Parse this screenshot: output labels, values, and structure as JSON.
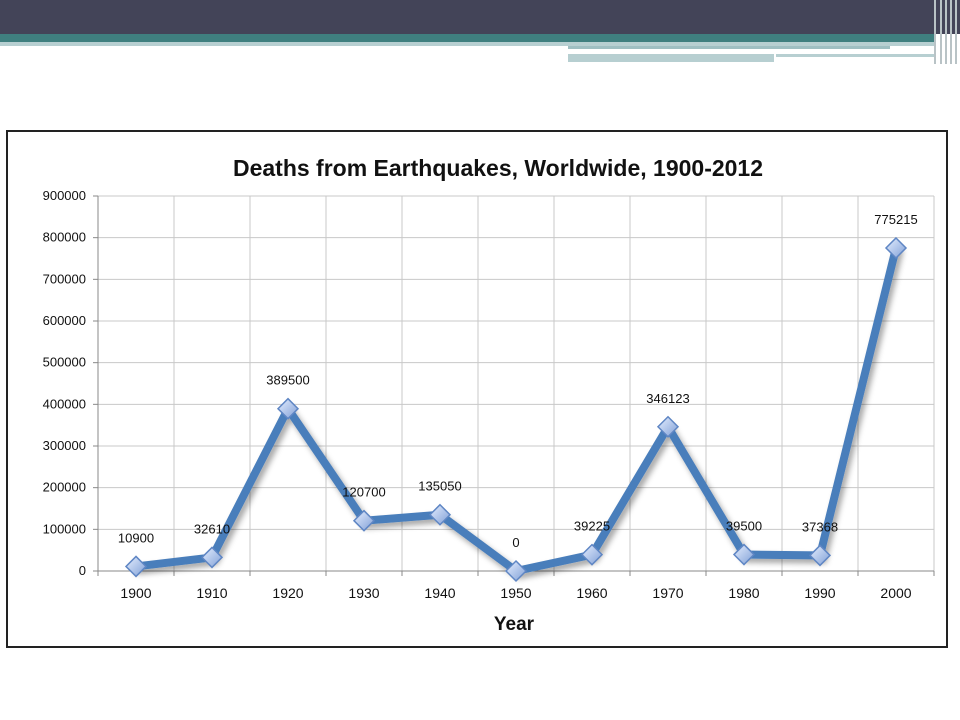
{
  "chart_data": {
    "type": "line",
    "title": "Deaths from Earthquakes, Worldwide, 1900-2012",
    "xlabel": "Year",
    "ylabel": "",
    "x": [
      "1900",
      "1910",
      "1920",
      "1930",
      "1940",
      "1950",
      "1960",
      "1970",
      "1980",
      "1990",
      "2000"
    ],
    "values": [
      10900,
      32610,
      389500,
      120700,
      135050,
      0,
      39225,
      346123,
      39500,
      37368,
      775215
    ],
    "data_labels": [
      "10900",
      "32610",
      "389500",
      "120700",
      "135050",
      "0",
      "39225",
      "346123",
      "39500",
      "37368",
      "775215"
    ],
    "ylim": [
      0,
      900000
    ],
    "yticks": [
      "0",
      "100000",
      "200000",
      "300000",
      "400000",
      "500000",
      "600000",
      "700000",
      "800000",
      "900000"
    ],
    "grid": true,
    "line_color": "#4a7ebb",
    "marker": "diamond"
  }
}
